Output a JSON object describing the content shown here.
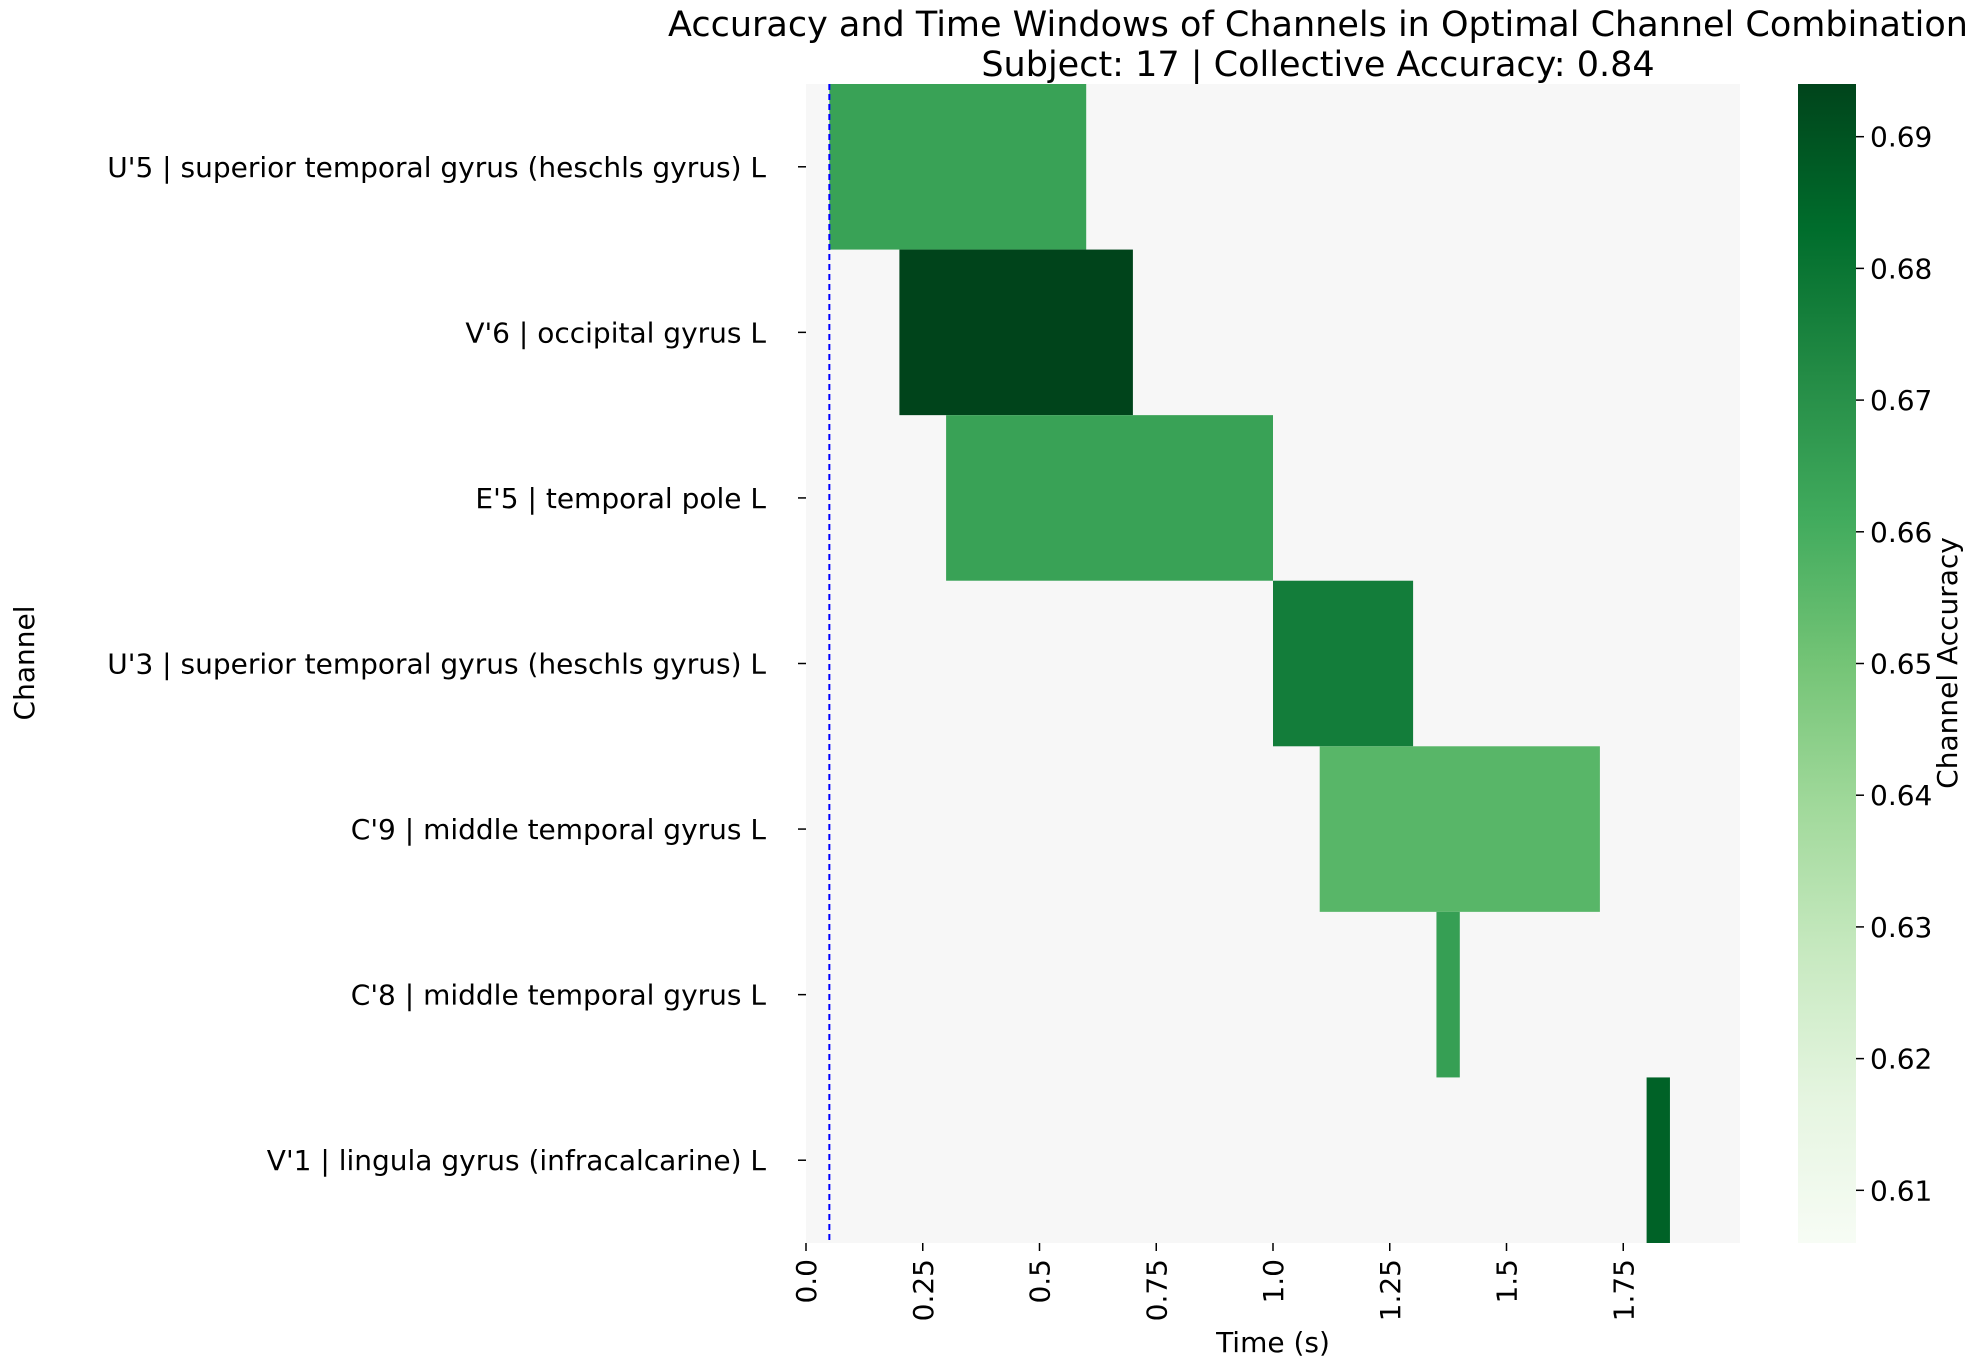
{
  "chart_data": {
    "type": "heatmap",
    "title": "Accuracy and Time Windows of Channels in Optimal Channel Combination",
    "subtitle": "Subject: 17 | Collective Accuracy: 0.84",
    "xlabel": "Time (s)",
    "ylabel": "Channel",
    "colorbar_label": "Channel Accuracy",
    "xlim": [
      0,
      2.0
    ],
    "x_ticks": [
      0.0,
      0.25,
      0.5,
      0.75,
      1.0,
      1.25,
      1.5,
      1.75
    ],
    "x_tick_labels": [
      "0.0",
      "0.25",
      "0.5",
      "0.75",
      "1.0",
      "1.25",
      "1.5",
      "1.75"
    ],
    "channels": [
      "U'5 | superior temporal gyrus (heschls gyrus) L",
      "V'6 | occipital gyrus L",
      "E'5 | temporal pole L",
      "U'3 | superior temporal gyrus (heschls gyrus) L",
      "C'9 | middle temporal gyrus L",
      "C'8 | middle temporal gyrus L",
      "V'1 | lingula gyrus (infracalcarine) L"
    ],
    "windows": [
      {
        "channel_index": 0,
        "start": 0.05,
        "end": 0.6,
        "accuracy": 0.664
      },
      {
        "channel_index": 1,
        "start": 0.2,
        "end": 0.7,
        "accuracy": 0.694
      },
      {
        "channel_index": 2,
        "start": 0.3,
        "end": 1.0,
        "accuracy": 0.664
      },
      {
        "channel_index": 3,
        "start": 1.0,
        "end": 1.3,
        "accuracy": 0.677
      },
      {
        "channel_index": 4,
        "start": 1.1,
        "end": 1.7,
        "accuracy": 0.656
      },
      {
        "channel_index": 5,
        "start": 1.35,
        "end": 1.4,
        "accuracy": 0.665
      },
      {
        "channel_index": 6,
        "start": 1.8,
        "end": 1.85,
        "accuracy": 0.686
      }
    ],
    "reference_line": {
      "x": 0.05,
      "color": "#0000ff",
      "style": "dashed"
    },
    "background_color": "#f7f7f7",
    "colormap": "Greens",
    "colorbar_range": [
      0.606,
      0.694
    ],
    "colorbar_ticks": [
      0.61,
      0.62,
      0.63,
      0.64,
      0.65,
      0.66,
      0.67,
      0.68,
      0.69
    ],
    "colorbar_tick_labels": [
      "0.61",
      "0.62",
      "0.63",
      "0.64",
      "0.65",
      "0.66",
      "0.67",
      "0.68",
      "0.69"
    ],
    "grid": false
  }
}
